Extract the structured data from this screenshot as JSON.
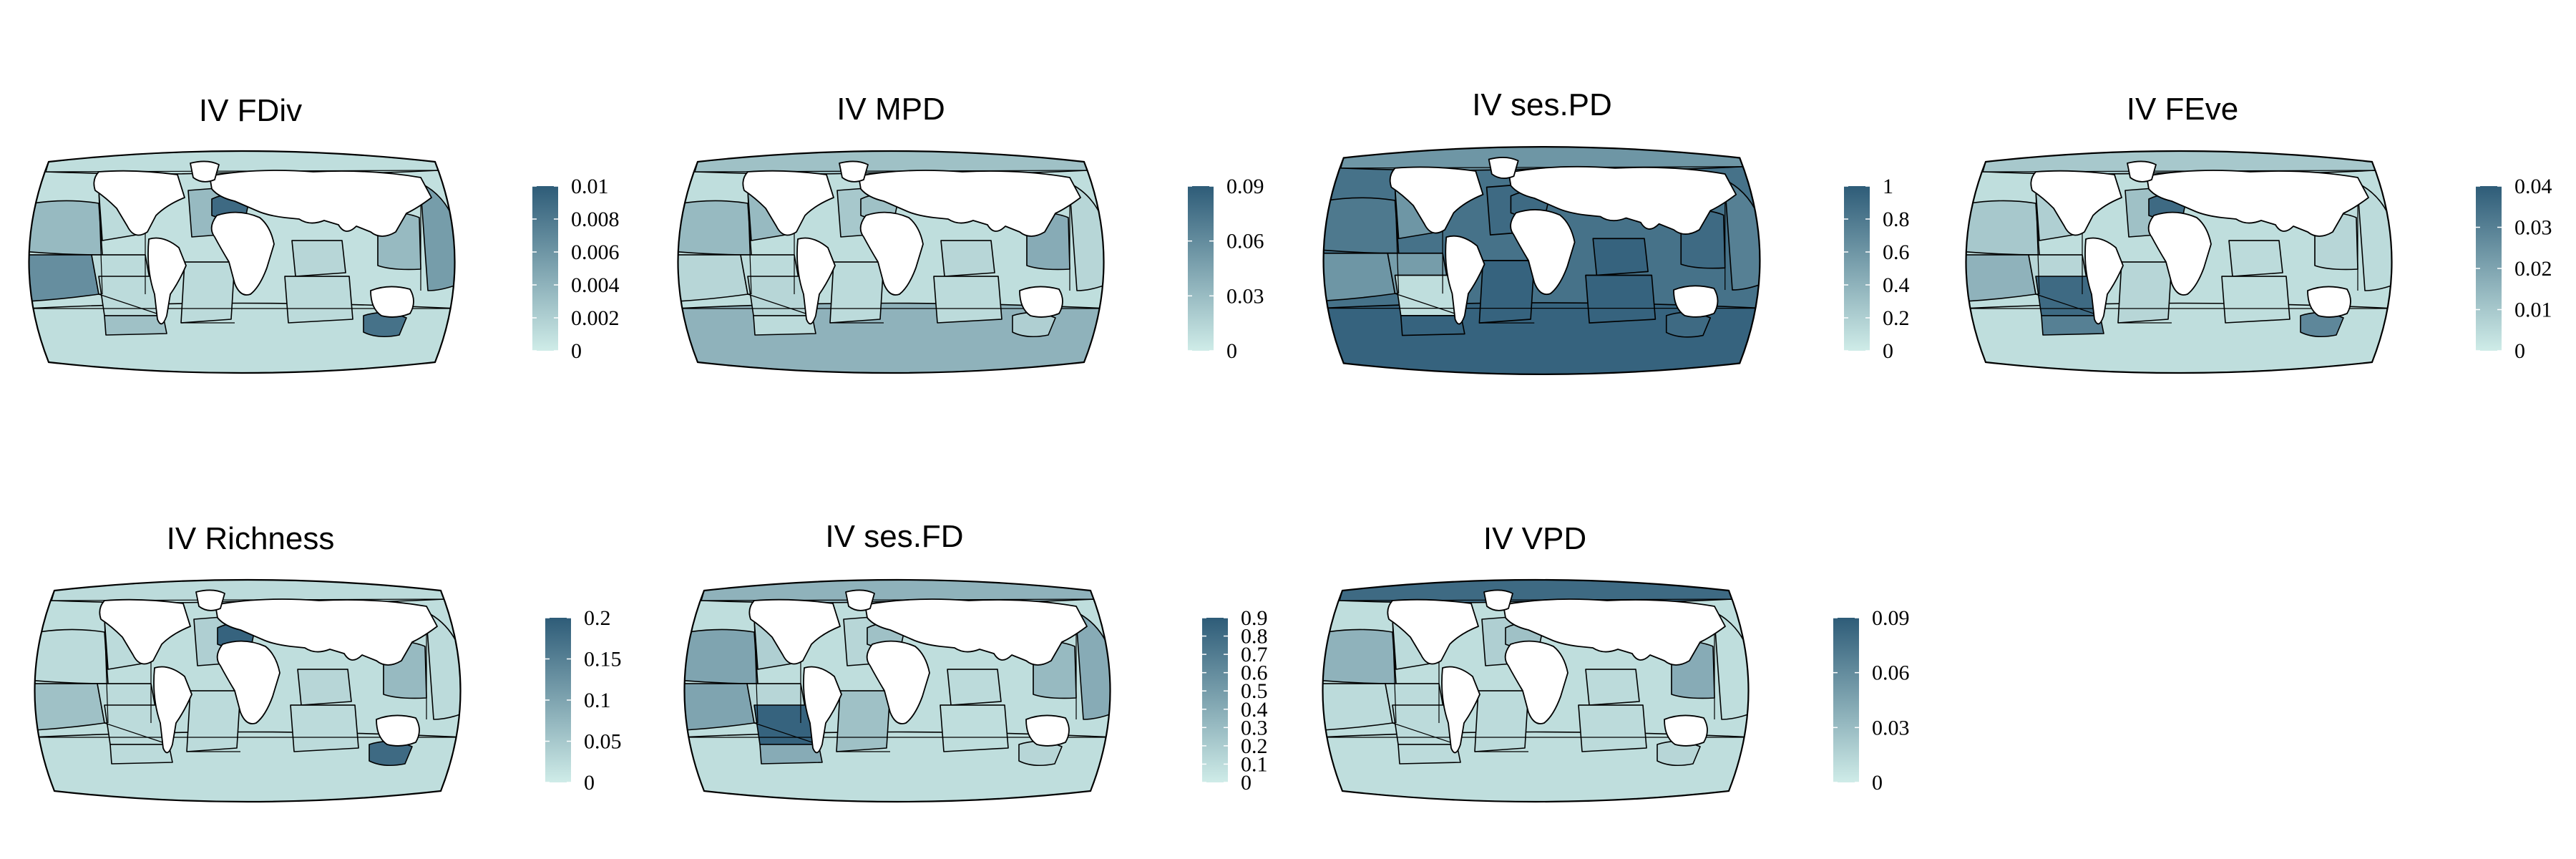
{
  "colors": {
    "ramp_low": "#cfece8",
    "ramp_high": "#2e5c78",
    "land": "#ffffff",
    "border": "#000000"
  },
  "panels": [
    {
      "title": "IV FDiv",
      "legend_ticks": [
        "0.01",
        "0.008",
        "0.006",
        "0.004",
        "0.002",
        "0"
      ],
      "levels": {
        "ocean": 0.08,
        "n_pacific_e": 0.12,
        "pacific_nw": 0.35,
        "central_pac_w": 0.65,
        "central_pac_e": 0.12,
        "e_pacific_tropical": 0.12,
        "se_pacific": 0.3,
        "n_atlantic": 0.35,
        "med": 0.9,
        "s_atlantic": 0.12,
        "indian_n": 0.15,
        "indian_s": 0.12,
        "w_pacific_trop": 0.35,
        "far_east": 0.55,
        "arctic": 0.1,
        "southern": 0.1,
        "aus_s": 0.85
      }
    },
    {
      "title": "IV MPD",
      "legend_ticks": [
        "0.09",
        "0.06",
        "0.03",
        "0"
      ],
      "levels": {
        "ocean": 0.1,
        "n_pacific_e": 0.35,
        "pacific_nw": 0.35,
        "central_pac_w": 0.15,
        "central_pac_e": 0.15,
        "e_pacific_tropical": 0.12,
        "se_pacific": 0.12,
        "n_atlantic": 0.25,
        "med": 0.3,
        "s_atlantic": 0.12,
        "indian_n": 0.15,
        "indian_s": 0.12,
        "w_pacific_trop": 0.45,
        "far_east": 0.15,
        "arctic": 0.3,
        "southern": 0.4,
        "aus_s": 0.2
      }
    },
    {
      "title": "IV ses.PD",
      "legend_ticks": [
        "1",
        "0.8",
        "0.6",
        "0.4",
        "0.2",
        "0"
      ],
      "levels": {
        "ocean": 0.85,
        "n_pacific_e": 0.6,
        "pacific_nw": 0.8,
        "central_pac_w": 0.6,
        "central_pac_e": 0.1,
        "e_pacific_tropical": 0.55,
        "se_pacific": 0.95,
        "n_atlantic": 0.9,
        "med": 0.9,
        "s_atlantic": 0.95,
        "indian_n": 0.95,
        "indian_s": 0.95,
        "w_pacific_trop": 0.9,
        "far_east": 0.75,
        "arctic": 0.6,
        "southern": 0.95,
        "aus_s": 0.9
      }
    },
    {
      "title": "IV FEve",
      "legend_ticks": [
        "0.04",
        "0.03",
        "0.02",
        "0.01",
        "0"
      ],
      "levels": {
        "ocean": 0.1,
        "n_pacific_e": 0.2,
        "pacific_nw": 0.25,
        "central_pac_w": 0.4,
        "central_pac_e": 0.9,
        "e_pacific_tropical": 0.15,
        "se_pacific": 0.75,
        "n_atlantic": 0.3,
        "med": 0.9,
        "s_atlantic": 0.15,
        "indian_n": 0.12,
        "indian_s": 0.1,
        "w_pacific_trop": 0.15,
        "far_east": 0.12,
        "arctic": 0.25,
        "southern": 0.1,
        "aus_s": 0.7
      }
    },
    {
      "title": "IV Richness",
      "legend_ticks": [
        "0.2",
        "0.15",
        "0.1",
        "0.05",
        "0"
      ],
      "levels": {
        "ocean": 0.1,
        "n_pacific_e": 0.12,
        "pacific_nw": 0.12,
        "central_pac_w": 0.3,
        "central_pac_e": 0.12,
        "e_pacific_tropical": 0.12,
        "se_pacific": 0.12,
        "n_atlantic": 0.2,
        "med": 0.95,
        "s_atlantic": 0.12,
        "indian_n": 0.15,
        "indian_s": 0.12,
        "w_pacific_trop": 0.35,
        "far_east": 0.12,
        "arctic": 0.12,
        "southern": 0.1,
        "aus_s": 0.9
      }
    },
    {
      "title": "IV ses.FD",
      "legend_ticks": [
        "0.9",
        "0.8",
        "0.7",
        "0.6",
        "0.5",
        "0.4",
        "0.3",
        "0.2",
        "0.1",
        "0"
      ],
      "levels": {
        "ocean": 0.1,
        "n_pacific_e": 0.2,
        "pacific_nw": 0.5,
        "central_pac_w": 0.5,
        "central_pac_e": 0.95,
        "e_pacific_tropical": 0.15,
        "se_pacific": 0.45,
        "n_atlantic": 0.15,
        "med": 0.3,
        "s_atlantic": 0.3,
        "indian_n": 0.12,
        "indian_s": 0.1,
        "w_pacific_trop": 0.35,
        "far_east": 0.45,
        "arctic": 0.4,
        "southern": 0.1,
        "aus_s": 0.15
      }
    },
    {
      "title": "IV VPD",
      "legend_ticks": [
        "0.09",
        "0.06",
        "0.03",
        "0"
      ],
      "levels": {
        "ocean": 0.1,
        "n_pacific_e": 0.12,
        "pacific_nw": 0.4,
        "central_pac_w": 0.12,
        "central_pac_e": 0.12,
        "e_pacific_tropical": 0.12,
        "se_pacific": 0.12,
        "n_atlantic": 0.2,
        "med": 0.3,
        "s_atlantic": 0.12,
        "indian_n": 0.12,
        "indian_s": 0.12,
        "w_pacific_trop": 0.45,
        "far_east": 0.1,
        "arctic": 0.9,
        "southern": 0.1,
        "aus_s": 0.15
      }
    }
  ]
}
